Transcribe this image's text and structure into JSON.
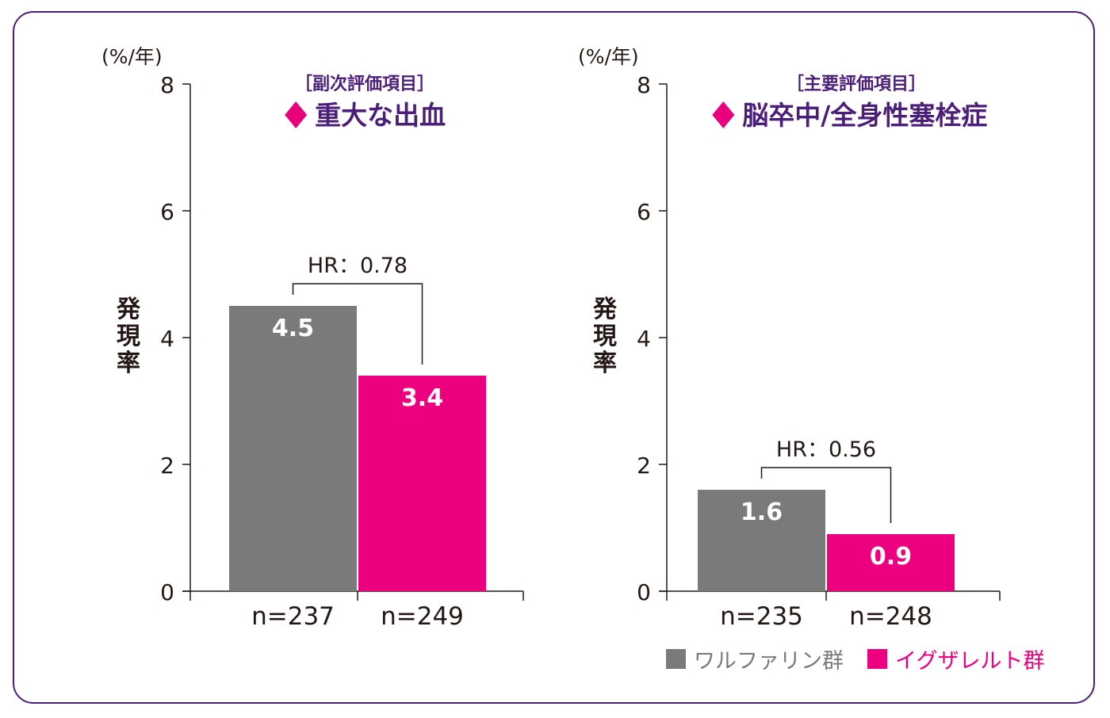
{
  "colors": {
    "frame": "#4b1f79",
    "warfarin": "#7b7a7a",
    "edoxaban": "#ec007f",
    "title": "#4b1f79",
    "accent": "#e8007d"
  },
  "legend": [
    {
      "label": "ワルファリン群",
      "color": "#7b7a7a"
    },
    {
      "label": "イグザレルト群",
      "color": "#ec007f"
    }
  ],
  "chart_data": [
    {
      "type": "bar",
      "subtitle": "［副次評価項目］",
      "title": "重大な出血",
      "unit": "(%/年)",
      "ylabel": "発現率",
      "ylim": [
        0,
        8
      ],
      "yticks": [
        "0",
        "2",
        "4",
        "6",
        "8"
      ],
      "categories": [
        "n=237",
        "n=249"
      ],
      "values": [
        4.5,
        3.4
      ],
      "value_labels": [
        "4.5",
        "3.4"
      ],
      "hr_label": "HR：0.78"
    },
    {
      "type": "bar",
      "subtitle": "［主要評価項目］",
      "title": "脳卒中/全身性塞栓症",
      "unit": "(%/年)",
      "ylabel": "発現率",
      "ylim": [
        0,
        8
      ],
      "yticks": [
        "0",
        "2",
        "4",
        "6",
        "8"
      ],
      "categories": [
        "n=235",
        "n=248"
      ],
      "values": [
        1.6,
        0.9
      ],
      "value_labels": [
        "1.6",
        "0.9"
      ],
      "hr_label": "HR：0.56"
    }
  ]
}
